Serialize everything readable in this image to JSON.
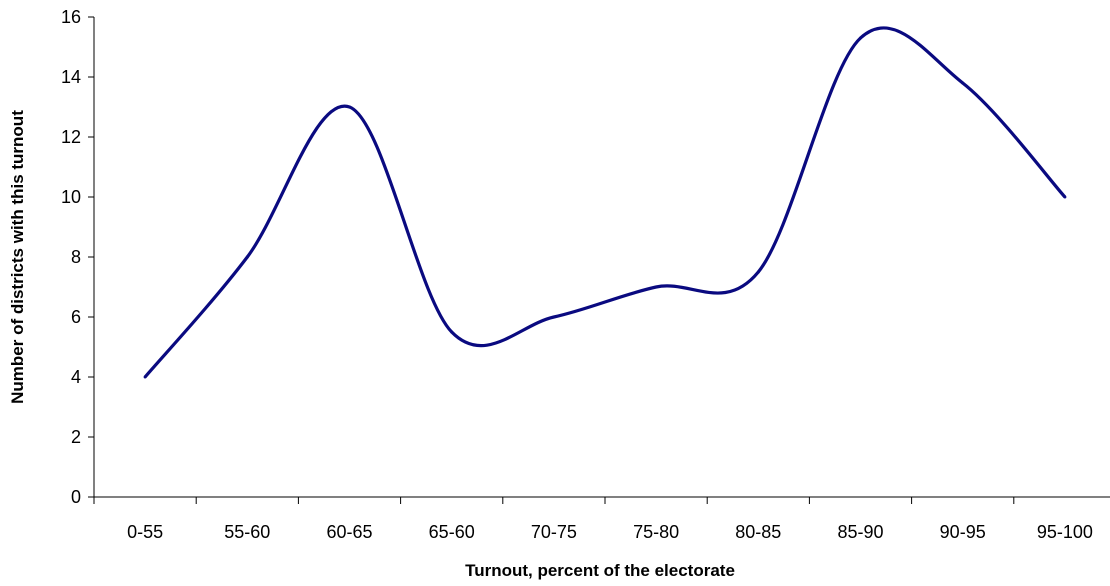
{
  "chart_data": {
    "type": "line",
    "title": "",
    "xlabel": "Turnout, percent of the electorate",
    "ylabel": "Number of districts with this turnout",
    "categories": [
      "0-55",
      "55-60",
      "60-65",
      "65-60",
      "70-75",
      "75-80",
      "80-85",
      "85-90",
      "90-95",
      "95-100"
    ],
    "series": [
      {
        "values": [
          4.0,
          8.0,
          13.0,
          5.5,
          6.0,
          7.0,
          7.5,
          15.3,
          13.8,
          10.0
        ]
      }
    ],
    "ylim": [
      0,
      16
    ],
    "yticks": [
      "0",
      "2",
      "4",
      "6",
      "8",
      "10",
      "12",
      "14",
      "16"
    ],
    "grid": false,
    "legend": "none",
    "line_color": "#0a0a80",
    "smooth": true
  }
}
